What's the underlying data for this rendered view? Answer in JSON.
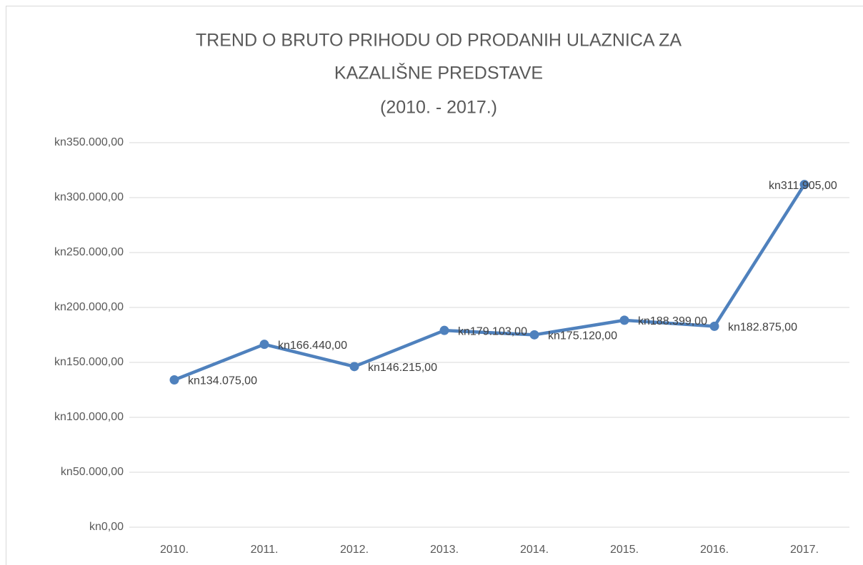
{
  "chart_data": {
    "type": "line",
    "title": [
      "TREND O BRUTO PRIHODU OD PRODANIH ULAZNICA ZA",
      "KAZALIŠNE PREDSTAVE",
      "(2010. - 2017.)"
    ],
    "categories": [
      "2010.",
      "2011.",
      "2012.",
      "2013.",
      "2014.",
      "2015.",
      "2016.",
      "2017."
    ],
    "series": [
      {
        "color": "#4f81bd",
        "values": [
          134075,
          166440,
          146215,
          179103,
          175120,
          188399,
          182875,
          311905
        ],
        "value_labels": [
          "kn134.075,00",
          "kn166.440,00",
          "kn146.215,00",
          "kn179.103,00",
          "kn175.120,00",
          "kn188.399,00",
          "kn182.875,00",
          "kn311.905,00"
        ]
      }
    ],
    "ylim": [
      0,
      350000
    ],
    "yticks": [
      {
        "value": 0,
        "label": "kn0,00"
      },
      {
        "value": 50000,
        "label": "kn50.000,00"
      },
      {
        "value": 100000,
        "label": "kn100.000,00"
      },
      {
        "value": 150000,
        "label": "kn150.000,00"
      },
      {
        "value": 200000,
        "label": "kn200.000,00"
      },
      {
        "value": 250000,
        "label": "kn250.000,00"
      },
      {
        "value": 300000,
        "label": "kn300.000,00"
      },
      {
        "value": 350000,
        "label": "kn350.000,00"
      }
    ],
    "grid": true
  }
}
